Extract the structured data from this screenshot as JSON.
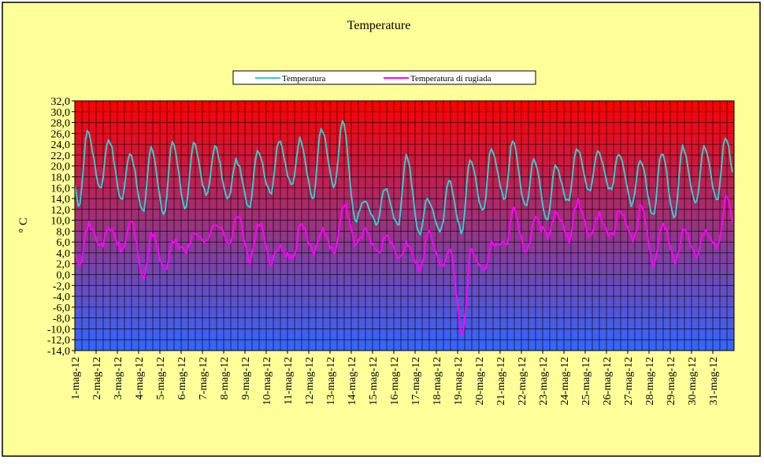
{
  "colors": {
    "background": "#ffff99",
    "plot_top": "#ff0000",
    "plot_bottom": "#3366ff",
    "grid": "#000000",
    "temperature": "#33cccc",
    "dewpoint": "#ff00ff"
  },
  "chart_data": {
    "type": "line",
    "title": "Temperature",
    "ylabel": "° C",
    "xlabel": "",
    "ylim": [
      -14,
      32
    ],
    "y_step": 2,
    "y_ticks": [
      "32,0",
      "30,0",
      "28,0",
      "26,0",
      "24,0",
      "22,0",
      "20,0",
      "18,0",
      "16,0",
      "14,0",
      "12,0",
      "10,0",
      "8,0",
      "6,0",
      "4,0",
      "2,0",
      "0,0",
      "-2,0",
      "-4,0",
      "-6,0",
      "-8,0",
      "-10,0",
      "-12,0",
      "-14,0"
    ],
    "categories": [
      "1-mag-12",
      "2-mag-12",
      "3-mag-12",
      "4-mag-12",
      "5-mag-12",
      "6-mag-12",
      "7-mag-12",
      "8-mag-12",
      "9-mag-12",
      "10-mag-12",
      "11-mag-12",
      "12-mag-12",
      "13-mag-12",
      "14-mag-12",
      "15-mag-12",
      "16-mag-12",
      "17-mag-12",
      "18-mag-12",
      "19-mag-12",
      "20-mag-12",
      "21-mag-12",
      "22-mag-12",
      "23-mag-12",
      "24-mag-12",
      "25-mag-12",
      "26-mag-12",
      "27-mag-12",
      "28-mag-12",
      "29-mag-12",
      "30-mag-12",
      "31-mag-12"
    ],
    "grid": true,
    "legend_position": "top",
    "series": [
      {
        "name": "Temperatura",
        "daily_min": [
          12.8,
          16.0,
          13.8,
          11.5,
          11.2,
          12.3,
          14.6,
          13.8,
          12.5,
          15.0,
          16.4,
          14.0,
          16.0,
          10.0,
          9.5,
          8.8,
          7.5,
          8.0,
          7.8,
          11.5,
          14.0,
          12.4,
          10.0,
          13.5,
          15.6,
          15.5,
          12.8,
          11.0,
          10.8,
          13.5,
          13.8
        ],
        "daily_max": [
          26.5,
          25.0,
          22.5,
          23.3,
          24.2,
          24.0,
          23.5,
          21.0,
          23.0,
          24.5,
          25.0,
          27.0,
          28.2,
          13.5,
          16.0,
          22.0,
          14.0,
          17.3,
          21.3,
          23.3,
          24.5,
          21.3,
          19.8,
          23.3,
          22.8,
          22.5,
          20.8,
          22.5,
          23.5,
          23.5,
          25.2
        ]
      },
      {
        "name": "Temperatura di rugiada",
        "daily_min": [
          2.5,
          5.5,
          4.5,
          -0.6,
          0.8,
          4.5,
          6.5,
          6.0,
          2.5,
          2.2,
          2.8,
          4.2,
          4.0,
          5.5,
          4.2,
          3.0,
          1.2,
          1.5,
          -10.8,
          1.0,
          5.5,
          4.0,
          7.0,
          6.5,
          7.0,
          7.0,
          6.5,
          1.8,
          2.5,
          3.8,
          5.0
        ],
        "daily_max": [
          9.0,
          8.5,
          10.0,
          7.5,
          6.0,
          7.5,
          9.5,
          11.0,
          9.5,
          5.0,
          9.0,
          8.5,
          13.2,
          8.0,
          7.0,
          6.0,
          7.8,
          5.0,
          4.5,
          6.0,
          12.0,
          10.0,
          11.5,
          13.5,
          11.0,
          12.0,
          12.5,
          9.5,
          8.0,
          7.5,
          14.0
        ]
      }
    ]
  }
}
